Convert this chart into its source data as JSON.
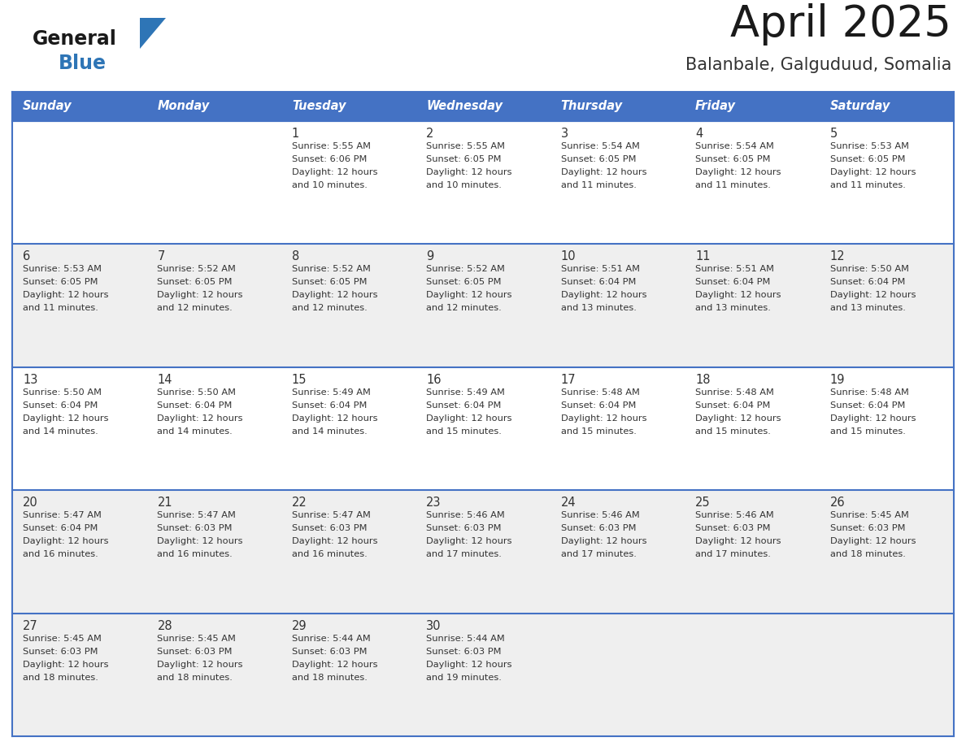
{
  "title": "April 2025",
  "subtitle": "Balanbale, Galguduud, Somalia",
  "days_of_week": [
    "Sunday",
    "Monday",
    "Tuesday",
    "Wednesday",
    "Thursday",
    "Friday",
    "Saturday"
  ],
  "header_bg": "#4472C4",
  "header_text_color": "#FFFFFF",
  "cell_bg_white": "#FFFFFF",
  "cell_bg_gray": "#F0F0F0",
  "border_color": "#4472C4",
  "text_color": "#333333",
  "title_color": "#1a1a1a",
  "subtitle_color": "#333333",
  "blue_color": "#2E75B6",
  "logo_general_color": "#1a1a1a",
  "weeks": [
    [
      {
        "day": null,
        "sunrise": null,
        "sunset": null,
        "daylight_line1": null,
        "daylight_line2": null
      },
      {
        "day": null,
        "sunrise": null,
        "sunset": null,
        "daylight_line1": null,
        "daylight_line2": null
      },
      {
        "day": 1,
        "sunrise": "5:55 AM",
        "sunset": "6:06 PM",
        "daylight_line1": "Daylight: 12 hours",
        "daylight_line2": "and 10 minutes."
      },
      {
        "day": 2,
        "sunrise": "5:55 AM",
        "sunset": "6:05 PM",
        "daylight_line1": "Daylight: 12 hours",
        "daylight_line2": "and 10 minutes."
      },
      {
        "day": 3,
        "sunrise": "5:54 AM",
        "sunset": "6:05 PM",
        "daylight_line1": "Daylight: 12 hours",
        "daylight_line2": "and 11 minutes."
      },
      {
        "day": 4,
        "sunrise": "5:54 AM",
        "sunset": "6:05 PM",
        "daylight_line1": "Daylight: 12 hours",
        "daylight_line2": "and 11 minutes."
      },
      {
        "day": 5,
        "sunrise": "5:53 AM",
        "sunset": "6:05 PM",
        "daylight_line1": "Daylight: 12 hours",
        "daylight_line2": "and 11 minutes."
      }
    ],
    [
      {
        "day": 6,
        "sunrise": "5:53 AM",
        "sunset": "6:05 PM",
        "daylight_line1": "Daylight: 12 hours",
        "daylight_line2": "and 11 minutes."
      },
      {
        "day": 7,
        "sunrise": "5:52 AM",
        "sunset": "6:05 PM",
        "daylight_line1": "Daylight: 12 hours",
        "daylight_line2": "and 12 minutes."
      },
      {
        "day": 8,
        "sunrise": "5:52 AM",
        "sunset": "6:05 PM",
        "daylight_line1": "Daylight: 12 hours",
        "daylight_line2": "and 12 minutes."
      },
      {
        "day": 9,
        "sunrise": "5:52 AM",
        "sunset": "6:05 PM",
        "daylight_line1": "Daylight: 12 hours",
        "daylight_line2": "and 12 minutes."
      },
      {
        "day": 10,
        "sunrise": "5:51 AM",
        "sunset": "6:04 PM",
        "daylight_line1": "Daylight: 12 hours",
        "daylight_line2": "and 13 minutes."
      },
      {
        "day": 11,
        "sunrise": "5:51 AM",
        "sunset": "6:04 PM",
        "daylight_line1": "Daylight: 12 hours",
        "daylight_line2": "and 13 minutes."
      },
      {
        "day": 12,
        "sunrise": "5:50 AM",
        "sunset": "6:04 PM",
        "daylight_line1": "Daylight: 12 hours",
        "daylight_line2": "and 13 minutes."
      }
    ],
    [
      {
        "day": 13,
        "sunrise": "5:50 AM",
        "sunset": "6:04 PM",
        "daylight_line1": "Daylight: 12 hours",
        "daylight_line2": "and 14 minutes."
      },
      {
        "day": 14,
        "sunrise": "5:50 AM",
        "sunset": "6:04 PM",
        "daylight_line1": "Daylight: 12 hours",
        "daylight_line2": "and 14 minutes."
      },
      {
        "day": 15,
        "sunrise": "5:49 AM",
        "sunset": "6:04 PM",
        "daylight_line1": "Daylight: 12 hours",
        "daylight_line2": "and 14 minutes."
      },
      {
        "day": 16,
        "sunrise": "5:49 AM",
        "sunset": "6:04 PM",
        "daylight_line1": "Daylight: 12 hours",
        "daylight_line2": "and 15 minutes."
      },
      {
        "day": 17,
        "sunrise": "5:48 AM",
        "sunset": "6:04 PM",
        "daylight_line1": "Daylight: 12 hours",
        "daylight_line2": "and 15 minutes."
      },
      {
        "day": 18,
        "sunrise": "5:48 AM",
        "sunset": "6:04 PM",
        "daylight_line1": "Daylight: 12 hours",
        "daylight_line2": "and 15 minutes."
      },
      {
        "day": 19,
        "sunrise": "5:48 AM",
        "sunset": "6:04 PM",
        "daylight_line1": "Daylight: 12 hours",
        "daylight_line2": "and 15 minutes."
      }
    ],
    [
      {
        "day": 20,
        "sunrise": "5:47 AM",
        "sunset": "6:04 PM",
        "daylight_line1": "Daylight: 12 hours",
        "daylight_line2": "and 16 minutes."
      },
      {
        "day": 21,
        "sunrise": "5:47 AM",
        "sunset": "6:03 PM",
        "daylight_line1": "Daylight: 12 hours",
        "daylight_line2": "and 16 minutes."
      },
      {
        "day": 22,
        "sunrise": "5:47 AM",
        "sunset": "6:03 PM",
        "daylight_line1": "Daylight: 12 hours",
        "daylight_line2": "and 16 minutes."
      },
      {
        "day": 23,
        "sunrise": "5:46 AM",
        "sunset": "6:03 PM",
        "daylight_line1": "Daylight: 12 hours",
        "daylight_line2": "and 17 minutes."
      },
      {
        "day": 24,
        "sunrise": "5:46 AM",
        "sunset": "6:03 PM",
        "daylight_line1": "Daylight: 12 hours",
        "daylight_line2": "and 17 minutes."
      },
      {
        "day": 25,
        "sunrise": "5:46 AM",
        "sunset": "6:03 PM",
        "daylight_line1": "Daylight: 12 hours",
        "daylight_line2": "and 17 minutes."
      },
      {
        "day": 26,
        "sunrise": "5:45 AM",
        "sunset": "6:03 PM",
        "daylight_line1": "Daylight: 12 hours",
        "daylight_line2": "and 18 minutes."
      }
    ],
    [
      {
        "day": 27,
        "sunrise": "5:45 AM",
        "sunset": "6:03 PM",
        "daylight_line1": "Daylight: 12 hours",
        "daylight_line2": "and 18 minutes."
      },
      {
        "day": 28,
        "sunrise": "5:45 AM",
        "sunset": "6:03 PM",
        "daylight_line1": "Daylight: 12 hours",
        "daylight_line2": "and 18 minutes."
      },
      {
        "day": 29,
        "sunrise": "5:44 AM",
        "sunset": "6:03 PM",
        "daylight_line1": "Daylight: 12 hours",
        "daylight_line2": "and 18 minutes."
      },
      {
        "day": 30,
        "sunrise": "5:44 AM",
        "sunset": "6:03 PM",
        "daylight_line1": "Daylight: 12 hours",
        "daylight_line2": "and 19 minutes."
      },
      {
        "day": null,
        "sunrise": null,
        "sunset": null,
        "daylight_line1": null,
        "daylight_line2": null
      },
      {
        "day": null,
        "sunrise": null,
        "sunset": null,
        "daylight_line1": null,
        "daylight_line2": null
      },
      {
        "day": null,
        "sunrise": null,
        "sunset": null,
        "daylight_line1": null,
        "daylight_line2": null
      }
    ]
  ],
  "row_bg_colors": [
    "#FFFFFF",
    "#EFEFEF",
    "#FFFFFF",
    "#EFEFEF",
    "#EFEFEF"
  ]
}
